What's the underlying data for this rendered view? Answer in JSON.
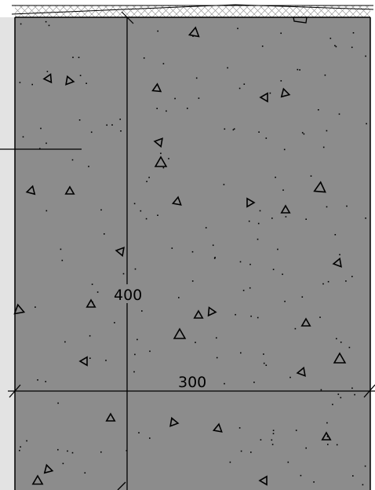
{
  "colors": {
    "concrete": "#8c8c8c",
    "left_panel": "#e3e3e3",
    "line": "#000000",
    "background": "#ffffff",
    "hatch": "#9a9a9a"
  },
  "dimensions": {
    "vertical": {
      "value": 400,
      "label": "400"
    },
    "horizontal": {
      "value": 300,
      "label": "300"
    }
  }
}
